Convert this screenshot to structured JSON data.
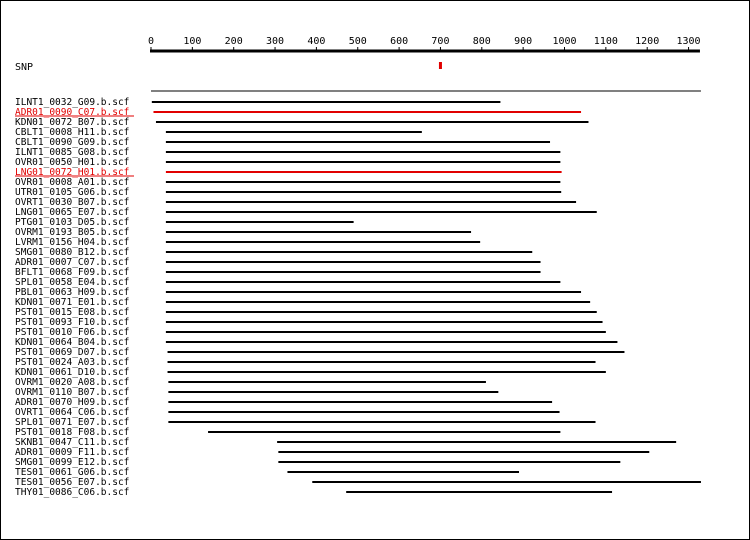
{
  "axis": {
    "min": 0,
    "max": 1330,
    "ticks": [
      0,
      100,
      200,
      300,
      400,
      500,
      600,
      700,
      800,
      900,
      1000,
      1100,
      1200,
      1300
    ],
    "color": "#000000"
  },
  "snp": {
    "label": "SNP",
    "position": 700,
    "color": "#e00000"
  },
  "reference": {
    "start": 0,
    "end": 1330
  },
  "colors": {
    "normal": "#000000",
    "highlight": "#e00000"
  },
  "reads": [
    {
      "name": "ILNT1_0032_G09.b.scf",
      "start": 2,
      "end": 845,
      "highlight": false
    },
    {
      "name": "ADR01_0090_C07.b.scf",
      "start": 6,
      "end": 1040,
      "highlight": true
    },
    {
      "name": "KDN01_0072_B07.b.scf",
      "start": 12,
      "end": 1058,
      "highlight": false
    },
    {
      "name": "CBLT1_0008_H11.b.scf",
      "start": 36,
      "end": 655,
      "highlight": false
    },
    {
      "name": "CBLT1_0090_G09.b.scf",
      "start": 36,
      "end": 965,
      "highlight": false
    },
    {
      "name": "ILNT1_0085_G08.b.scf",
      "start": 36,
      "end": 990,
      "highlight": false
    },
    {
      "name": "OVR01_0050_H01.b.scf",
      "start": 36,
      "end": 990,
      "highlight": false
    },
    {
      "name": "LNG01_0072_H01.b.scf",
      "start": 36,
      "end": 993,
      "highlight": true
    },
    {
      "name": "OVR01_0008_A01.b.scf",
      "start": 36,
      "end": 990,
      "highlight": false
    },
    {
      "name": "UTR01_0105_G06.b.scf",
      "start": 36,
      "end": 992,
      "highlight": false
    },
    {
      "name": "OVRT1_0030_B07.b.scf",
      "start": 36,
      "end": 1028,
      "highlight": false
    },
    {
      "name": "LNG01_0065_E07.b.scf",
      "start": 36,
      "end": 1078,
      "highlight": false
    },
    {
      "name": "PTG01_0103_D05.b.scf",
      "start": 36,
      "end": 490,
      "highlight": false
    },
    {
      "name": "OVRM1_0193_B05.b.scf",
      "start": 36,
      "end": 774,
      "highlight": false
    },
    {
      "name": "LVRM1_0156_H04.b.scf",
      "start": 36,
      "end": 796,
      "highlight": false
    },
    {
      "name": "SMG01_0080_B12.b.scf",
      "start": 36,
      "end": 922,
      "highlight": false
    },
    {
      "name": "ADR01_0007_C07.b.scf",
      "start": 36,
      "end": 942,
      "highlight": false
    },
    {
      "name": "BFLT1_0068_F09.b.scf",
      "start": 36,
      "end": 942,
      "highlight": false
    },
    {
      "name": "SPL01_0058_E04.b.scf",
      "start": 36,
      "end": 990,
      "highlight": false
    },
    {
      "name": "PBL01_0063_H09.b.scf",
      "start": 36,
      "end": 1040,
      "highlight": false
    },
    {
      "name": "KDN01_0071_E01.b.scf",
      "start": 36,
      "end": 1062,
      "highlight": false
    },
    {
      "name": "PST01_0015_E08.b.scf",
      "start": 36,
      "end": 1078,
      "highlight": false
    },
    {
      "name": "PST01_0093_F10.b.scf",
      "start": 36,
      "end": 1092,
      "highlight": false
    },
    {
      "name": "PST01_0010_F06.b.scf",
      "start": 36,
      "end": 1100,
      "highlight": false
    },
    {
      "name": "KDN01_0064_B04.b.scf",
      "start": 36,
      "end": 1128,
      "highlight": false
    },
    {
      "name": "PST01_0069_D07.b.scf",
      "start": 40,
      "end": 1145,
      "highlight": false
    },
    {
      "name": "PST01_0024_A03.b.scf",
      "start": 40,
      "end": 1075,
      "highlight": false
    },
    {
      "name": "KDN01_0061_D10.b.scf",
      "start": 40,
      "end": 1100,
      "highlight": false
    },
    {
      "name": "OVRM1_0020_A08.b.scf",
      "start": 42,
      "end": 810,
      "highlight": false
    },
    {
      "name": "OVRM1_0110_B07.b.scf",
      "start": 42,
      "end": 840,
      "highlight": false
    },
    {
      "name": "ADR01_0070_H09.b.scf",
      "start": 42,
      "end": 970,
      "highlight": false
    },
    {
      "name": "OVRT1_0064_C06.b.scf",
      "start": 42,
      "end": 988,
      "highlight": false
    },
    {
      "name": "SPL01_0071_E07.b.scf",
      "start": 42,
      "end": 1075,
      "highlight": false
    },
    {
      "name": "PST01_0018_F08.b.scf",
      "start": 138,
      "end": 990,
      "highlight": false
    },
    {
      "name": "SKNB1_0047_C11.b.scf",
      "start": 305,
      "end": 1270,
      "highlight": false
    },
    {
      "name": "ADR01_0009_F11.b.scf",
      "start": 308,
      "end": 1205,
      "highlight": false
    },
    {
      "name": "SMG01_0099_E12.b.scf",
      "start": 308,
      "end": 1135,
      "highlight": false
    },
    {
      "name": "TES01_0061_G06.b.scf",
      "start": 330,
      "end": 890,
      "highlight": false
    },
    {
      "name": "TES01_0056_E07.b.scf",
      "start": 390,
      "end": 1330,
      "highlight": false
    },
    {
      "name": "THY01_0086_C06.b.scf",
      "start": 472,
      "end": 1115,
      "highlight": false
    }
  ]
}
